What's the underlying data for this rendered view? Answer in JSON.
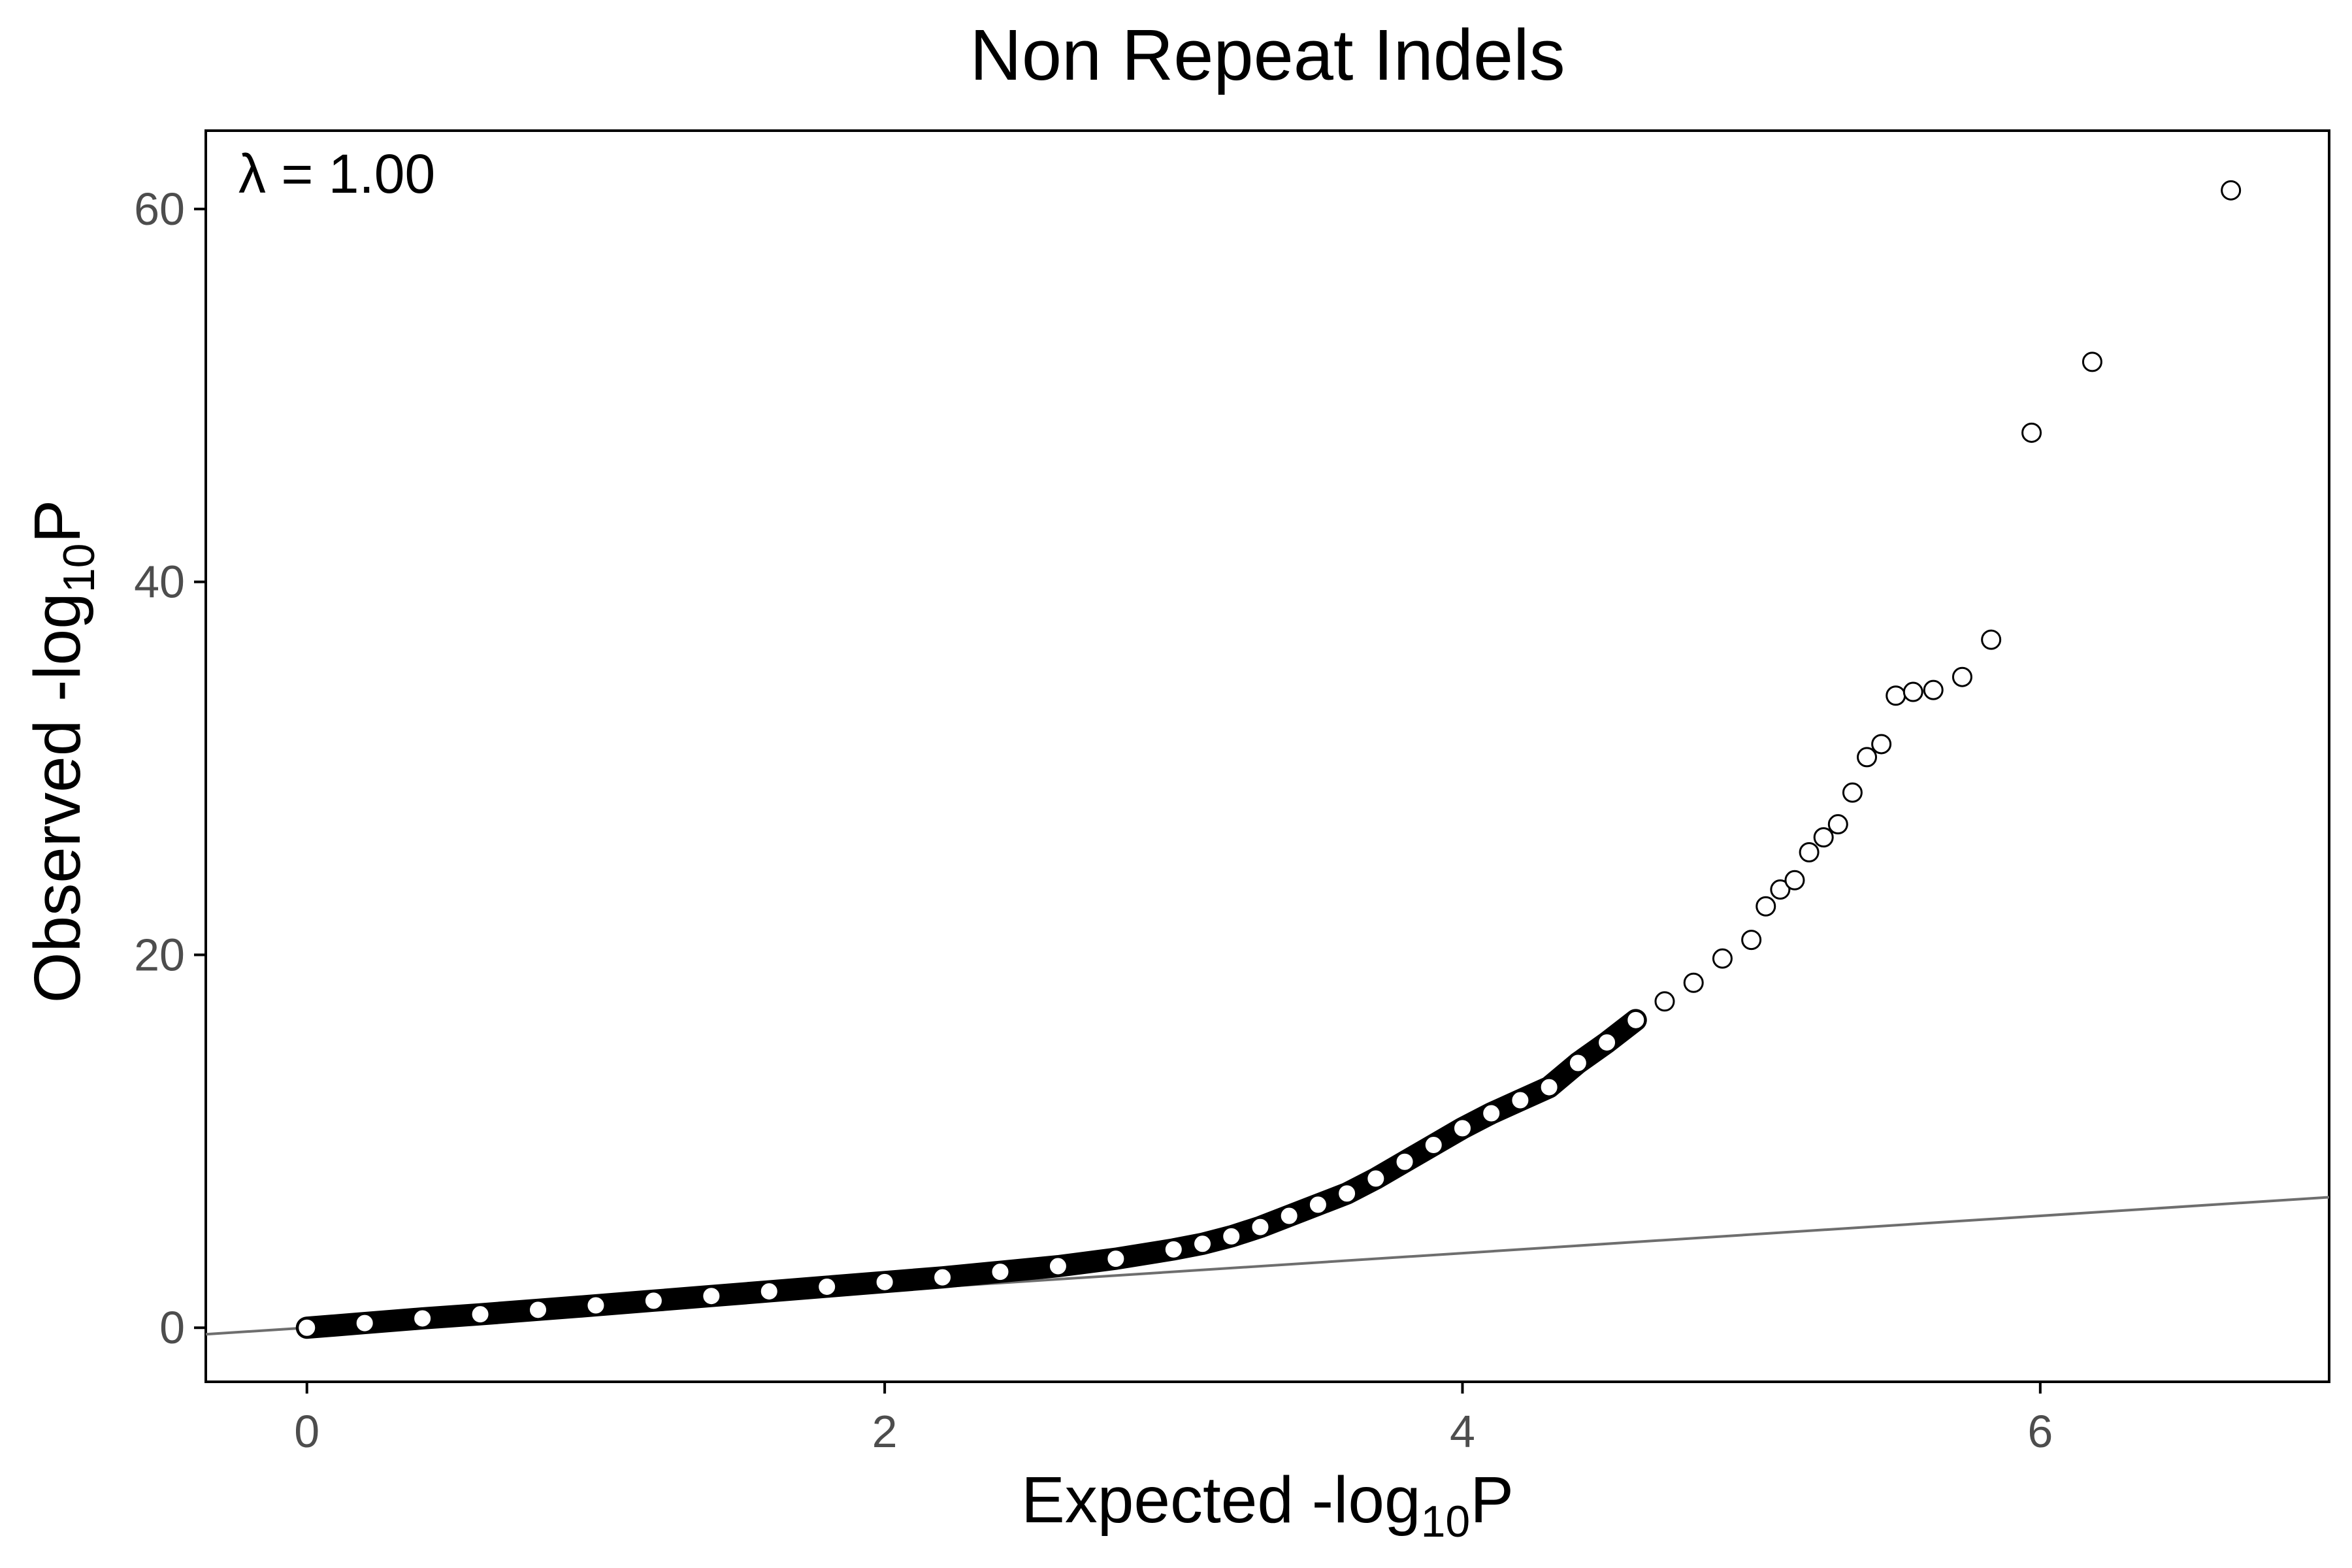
{
  "chart_data": {
    "type": "scatter",
    "title": "Non Repeat Indels",
    "annotation": "λ = 1.00",
    "xlabel": {
      "main": "Expected -log",
      "sub": "10",
      "tail": "P"
    },
    "ylabel": {
      "main": "Observed -log",
      "sub": "10",
      "tail": "P"
    },
    "xlim": [
      -0.35,
      7.0
    ],
    "ylim": [
      -2.9,
      64.2
    ],
    "xticks": [
      0,
      2,
      4,
      6
    ],
    "yticks": [
      0,
      20,
      40,
      60
    ],
    "reference_line": {
      "slope": 1,
      "intercept": 0,
      "color": "#6e6e6e"
    },
    "grid": false,
    "legend": "none",
    "colors": {
      "point_stroke": "#000000",
      "point_fill": "none",
      "axis": "#000000",
      "tick_label": "#4d4d4d"
    },
    "series": [
      {
        "points": [
          [
            0.0,
            0.0
          ],
          [
            0.2,
            0.25
          ],
          [
            0.4,
            0.5
          ],
          [
            0.6,
            0.72
          ],
          [
            0.8,
            0.96
          ],
          [
            1.0,
            1.2
          ],
          [
            1.2,
            1.45
          ],
          [
            1.4,
            1.7
          ],
          [
            1.6,
            1.95
          ],
          [
            1.8,
            2.2
          ],
          [
            2.0,
            2.45
          ],
          [
            2.2,
            2.7
          ],
          [
            2.4,
            3.0
          ],
          [
            2.6,
            3.3
          ],
          [
            2.8,
            3.7
          ],
          [
            3.0,
            4.2
          ],
          [
            3.1,
            4.5
          ],
          [
            3.2,
            4.9
          ],
          [
            3.3,
            5.4
          ],
          [
            3.4,
            6.0
          ],
          [
            3.5,
            6.6
          ],
          [
            3.6,
            7.2
          ],
          [
            3.7,
            8.0
          ],
          [
            3.8,
            8.9
          ],
          [
            3.9,
            9.8
          ],
          [
            4.0,
            10.7
          ],
          [
            4.1,
            11.5
          ],
          [
            4.2,
            12.2
          ],
          [
            4.3,
            12.9
          ],
          [
            4.4,
            14.2
          ],
          [
            4.5,
            15.3
          ],
          [
            4.6,
            16.5
          ],
          [
            4.7,
            17.5
          ],
          [
            4.8,
            18.5
          ],
          [
            4.9,
            19.8
          ],
          [
            5.0,
            20.8
          ],
          [
            5.05,
            22.6
          ],
          [
            5.1,
            23.5
          ],
          [
            5.15,
            24.0
          ],
          [
            5.2,
            25.5
          ],
          [
            5.25,
            26.3
          ],
          [
            5.3,
            27.0
          ],
          [
            5.35,
            28.7
          ],
          [
            5.4,
            30.6
          ],
          [
            5.45,
            31.3
          ],
          [
            5.5,
            33.9
          ],
          [
            5.56,
            34.1
          ],
          [
            5.63,
            34.2
          ],
          [
            5.73,
            34.9
          ],
          [
            5.83,
            36.9
          ],
          [
            5.97,
            48.0
          ],
          [
            6.18,
            51.8
          ],
          [
            6.66,
            61.0
          ]
        ]
      }
    ]
  }
}
